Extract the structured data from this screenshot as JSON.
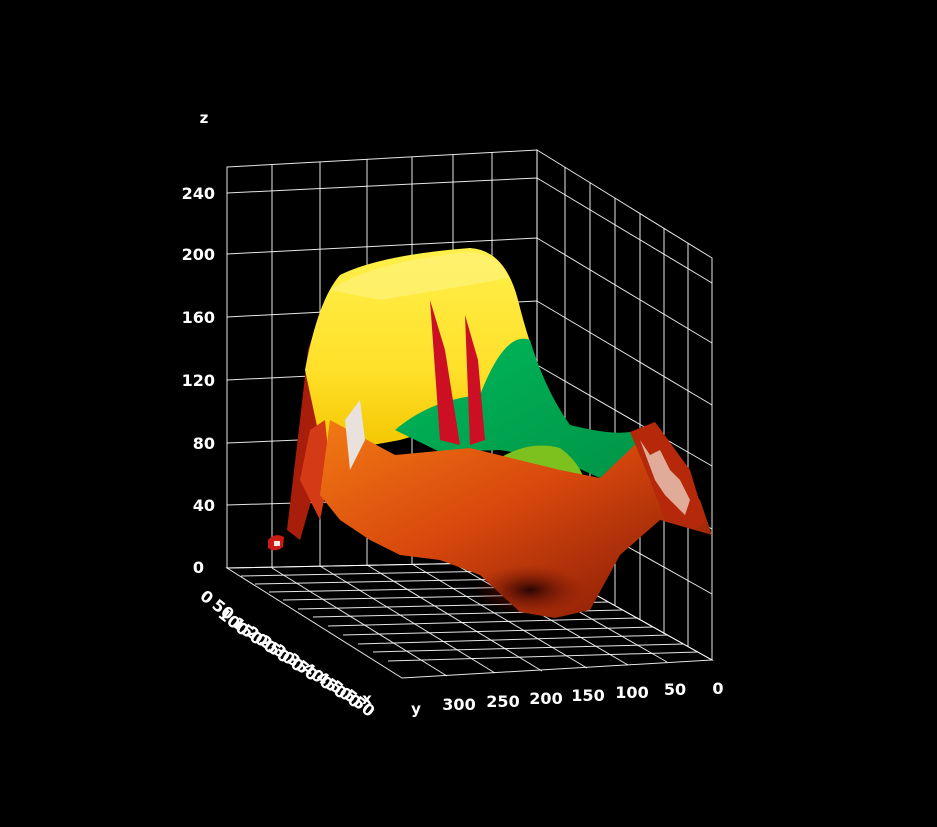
{
  "chart_data": {
    "type": "surface3d",
    "title": "",
    "axes": {
      "x": {
        "label": "x",
        "ticks": [
          "0",
          "50",
          "100",
          "150",
          "200",
          "250",
          "300",
          "350",
          "400",
          "450",
          "500",
          "550"
        ],
        "range": [
          0,
          560
        ]
      },
      "y": {
        "label": "y",
        "ticks": [
          "300",
          "250",
          "200",
          "150",
          "100",
          "50",
          "0"
        ],
        "range": [
          0,
          330
        ]
      },
      "z": {
        "label": "z",
        "ticks": [
          "0",
          "40",
          "80",
          "120",
          "160",
          "200",
          "240"
        ],
        "range": [
          0,
          260
        ]
      }
    },
    "grid": true,
    "background": "#000000",
    "surface_colors": [
      "#ffe433",
      "#f6c800",
      "#00a651",
      "#7dc11e",
      "#cc0f23",
      "#e0621a",
      "#a02005",
      "#5a0c04"
    ],
    "description_values": {
      "max_height": 205,
      "min_height": 0
    }
  }
}
